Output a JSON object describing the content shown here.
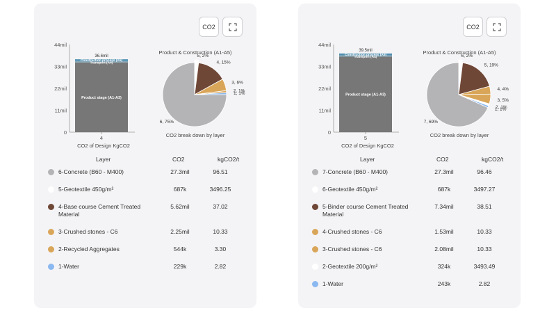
{
  "toolbar": {
    "co2_label": "CO2",
    "expand_icon": "expand-icon"
  },
  "table_headers": {
    "layer": "Layer",
    "co2": "CO2",
    "kg": "kgCO2/t"
  },
  "colors": {
    "concrete": "#b4b4b6",
    "geotextile": "#ffffff",
    "cement": "#6f4737",
    "stones": "#d9a659",
    "water": "#8ab8f0",
    "bar_main": "#777777",
    "bar_top": "#4f8fb0"
  },
  "cards": [
    {
      "bar": {
        "y_ticks": [
          "44mil",
          "33mil",
          "22mil",
          "11mil",
          "0"
        ],
        "ymax": 44,
        "total_label": "36.6mil",
        "total": 36.6,
        "x_label": "4",
        "caption": "CO2 of Design KgCO2",
        "segments": [
          {
            "label": "Product stage (A1-A3)",
            "value": 35.0,
            "color": "#777777"
          },
          {
            "label": "Transport (A4)",
            "value": 0.7,
            "color": "#88a8b8"
          },
          {
            "label": "Construction process (A5)",
            "value": 0.9,
            "color": "#4f8fb0"
          }
        ]
      },
      "pie": {
        "title": "Product & Construction (A1-A5)",
        "caption": "CO2 break down by layer",
        "slices": [
          {
            "label": "6, 75%",
            "value": 75,
            "color": "#b4b4b6",
            "explode": false
          },
          {
            "label": "5, 2%",
            "value": 2,
            "color": "#ffffff",
            "explode": true
          },
          {
            "label": "4, 15%",
            "value": 15,
            "color": "#6f4737",
            "explode": false
          },
          {
            "label": "3, 6%",
            "value": 6,
            "color": "#d9a659",
            "explode": false
          },
          {
            "label": "2, 1%",
            "value": 1,
            "color": "#d9a659",
            "explode": false
          },
          {
            "label": "1, 1%",
            "value": 1,
            "color": "#8ab8f0",
            "explode": false
          }
        ]
      },
      "rows": [
        {
          "name": "6-Concrete (B60 - M400)",
          "co2": "27.3mil",
          "kg": "96.51",
          "color": "#b4b4b6",
          "tall": false
        },
        {
          "name": "5-Geotextile 450g/m²",
          "co2": "687k",
          "kg": "3496.25",
          "color": "#ffffff",
          "tall": false
        },
        {
          "name": "4-Base course Cement Treated Material",
          "co2": "5.62mil",
          "kg": "37.02",
          "color": "#6f4737",
          "tall": true
        },
        {
          "name": "3-Crushed stones - C6",
          "co2": "2.25mil",
          "kg": "10.33",
          "color": "#d9a659",
          "tall": false
        },
        {
          "name": "2-Recycled Aggregates",
          "co2": "544k",
          "kg": "3.30",
          "color": "#d9a659",
          "tall": false
        },
        {
          "name": "1-Water",
          "co2": "229k",
          "kg": "2.82",
          "color": "#8ab8f0",
          "tall": false
        }
      ]
    },
    {
      "bar": {
        "y_ticks": [
          "44mil",
          "33mil",
          "22mil",
          "11mil",
          "0"
        ],
        "ymax": 44,
        "total_label": "39.5mil",
        "total": 39.5,
        "x_label": "5",
        "caption": "CO2 of Design KgCO2",
        "segments": [
          {
            "label": "Product stage (A1-A3)",
            "value": 37.9,
            "color": "#777777"
          },
          {
            "label": "Transport (A4)",
            "value": 0.7,
            "color": "#88a8b8"
          },
          {
            "label": "Construction process (A5)",
            "value": 0.9,
            "color": "#4f8fb0"
          }
        ]
      },
      "pie": {
        "title": "Product & Construction (A1-A5)",
        "caption": "CO2 break down by layer",
        "slices": [
          {
            "label": "7, 69%",
            "value": 69,
            "color": "#b4b4b6",
            "explode": false
          },
          {
            "label": "6, 2%",
            "value": 2,
            "color": "#ffffff",
            "explode": true
          },
          {
            "label": "5, 19%",
            "value": 19,
            "color": "#6f4737",
            "explode": false
          },
          {
            "label": "4, 4%",
            "value": 4,
            "color": "#d9a659",
            "explode": false
          },
          {
            "label": "3, 5%",
            "value": 5,
            "color": "#d9a659",
            "explode": false
          },
          {
            "label": "2, 1%",
            "value": 1,
            "color": "#ffffff",
            "explode": false
          },
          {
            "label": "1, 1%",
            "value": 1,
            "color": "#8ab8f0",
            "explode": false
          }
        ]
      },
      "rows": [
        {
          "name": "7-Concrete (B60 - M400)",
          "co2": "27.3mil",
          "kg": "96.46",
          "color": "#b4b4b6",
          "tall": false
        },
        {
          "name": "6-Geotextile 450g/m²",
          "co2": "687k",
          "kg": "3497.27",
          "color": "#ffffff",
          "tall": false
        },
        {
          "name": "5-Binder course Cement Treated Material",
          "co2": "7.34mil",
          "kg": "38.51",
          "color": "#6f4737",
          "tall": true
        },
        {
          "name": "4-Crushed stones - C6",
          "co2": "1.53mil",
          "kg": "10.33",
          "color": "#d9a659",
          "tall": false
        },
        {
          "name": "3-Crushed stones - C6",
          "co2": "2.08mil",
          "kg": "10.33",
          "color": "#d9a659",
          "tall": false
        },
        {
          "name": "2-Geotextile 200g/m²",
          "co2": "324k",
          "kg": "3493.49",
          "color": "#ffffff",
          "tall": false
        },
        {
          "name": "1-Water",
          "co2": "243k",
          "kg": "2.82",
          "color": "#8ab8f0",
          "tall": false
        }
      ]
    }
  ],
  "chart_data": [
    {
      "type": "bar",
      "categories": [
        "4"
      ],
      "series": [
        {
          "name": "Product stage (A1-A3)",
          "values": [
            35.0
          ]
        },
        {
          "name": "Transport (A4)",
          "values": [
            0.7
          ]
        },
        {
          "name": "Construction process (A5)",
          "values": [
            0.9
          ]
        }
      ],
      "total": "36.6mil",
      "xlabel": "CO2 of Design KgCO2",
      "ylim": [
        0,
        44
      ]
    },
    {
      "type": "pie",
      "title": "Product & Construction (A1-A5)",
      "categories": [
        "6",
        "5",
        "4",
        "3",
        "2",
        "1"
      ],
      "values": [
        75,
        2,
        15,
        6,
        1,
        1
      ]
    },
    {
      "type": "bar",
      "categories": [
        "5"
      ],
      "series": [
        {
          "name": "Product stage (A1-A3)",
          "values": [
            37.9
          ]
        },
        {
          "name": "Transport (A4)",
          "values": [
            0.7
          ]
        },
        {
          "name": "Construction process (A5)",
          "values": [
            0.9
          ]
        }
      ],
      "total": "39.5mil",
      "xlabel": "CO2 of Design KgCO2",
      "ylim": [
        0,
        44
      ]
    },
    {
      "type": "pie",
      "title": "Product & Construction (A1-A5)",
      "categories": [
        "7",
        "6",
        "5",
        "4",
        "3",
        "2",
        "1"
      ],
      "values": [
        69,
        2,
        19,
        4,
        5,
        1,
        1
      ]
    }
  ]
}
